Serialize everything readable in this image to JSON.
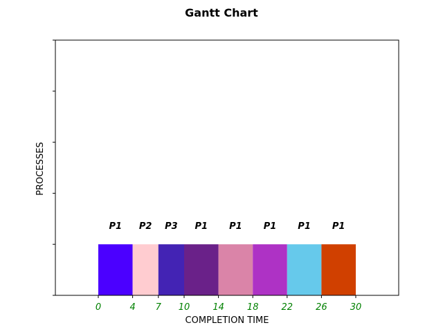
{
  "chart_data": {
    "type": "bar",
    "title": "Gantt Chart",
    "xlabel": "COMPLETION TIME",
    "ylabel": "PROCESSES",
    "xlim": [
      -5,
      35
    ],
    "ylim": [
      0,
      5
    ],
    "tick_color": "#008000",
    "xticks": [
      0,
      4,
      7,
      10,
      14,
      18,
      22,
      26,
      30
    ],
    "yticks": [
      0,
      1,
      2,
      3,
      4,
      5
    ],
    "bar_y_range": [
      0,
      1
    ],
    "segments": [
      {
        "label": "P1",
        "start": 0,
        "end": 4,
        "color": "#4b00ff"
      },
      {
        "label": "P2",
        "start": 4,
        "end": 7,
        "color": "#ffccd0"
      },
      {
        "label": "P3",
        "start": 7,
        "end": 10,
        "color": "#4323b4"
      },
      {
        "label": "P1",
        "start": 10,
        "end": 14,
        "color": "#6a2189"
      },
      {
        "label": "P1",
        "start": 14,
        "end": 18,
        "color": "#da84a8"
      },
      {
        "label": "P1",
        "start": 18,
        "end": 22,
        "color": "#ae32c5"
      },
      {
        "label": "P1",
        "start": 22,
        "end": 26,
        "color": "#66c9eb"
      },
      {
        "label": "P1",
        "start": 26,
        "end": 30,
        "color": "#d04000"
      }
    ]
  }
}
